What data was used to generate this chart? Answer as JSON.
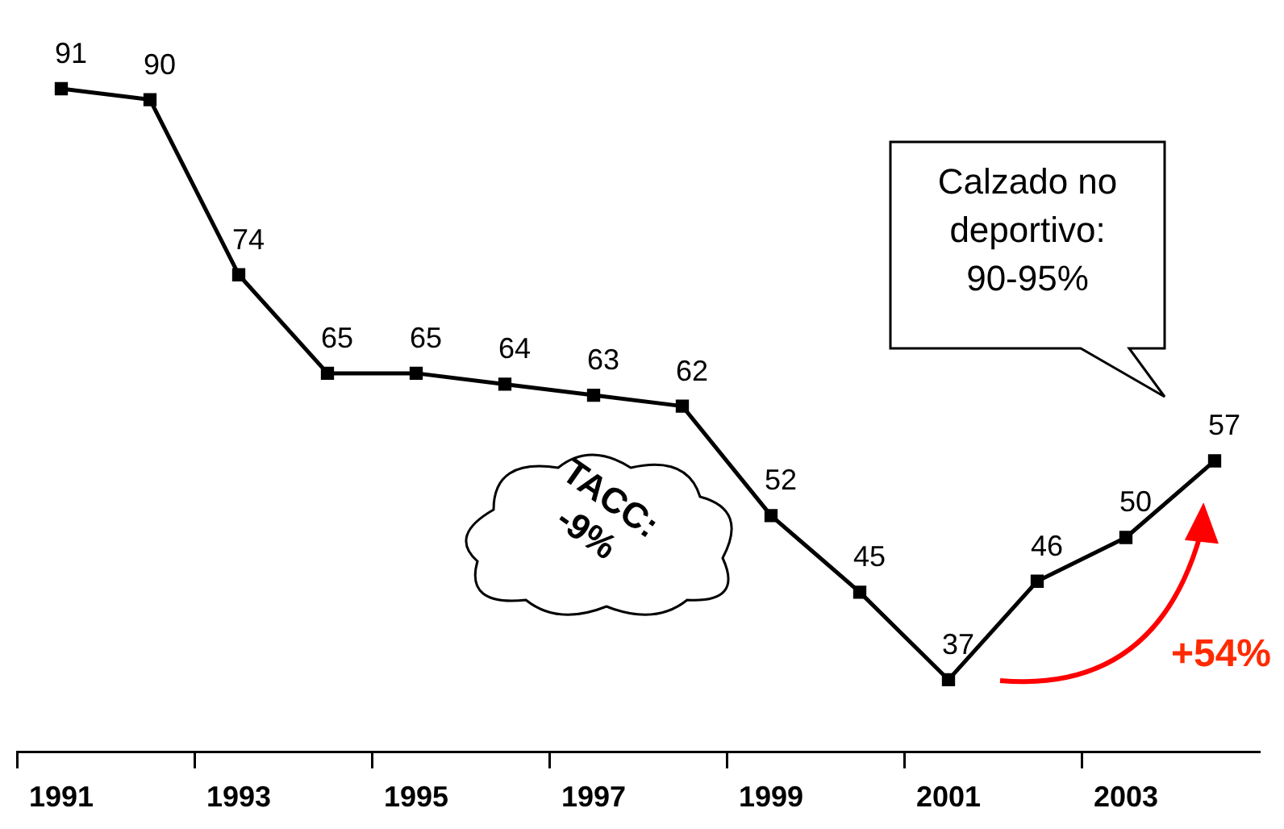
{
  "chart_data": {
    "type": "line",
    "categories": [
      "1991",
      null,
      "1993",
      null,
      "1995",
      null,
      "1997",
      null,
      "1999",
      null,
      "2001",
      null,
      "2003",
      null
    ],
    "series": [
      {
        "color": "#000000",
        "values": [
          91,
          90,
          74,
          65,
          65,
          64,
          63,
          62,
          52,
          45,
          37,
          46,
          50,
          57
        ]
      }
    ],
    "data_labels": true,
    "marker": "square",
    "line_style": "solid",
    "grid": false,
    "legend": false,
    "tick_labels": "x",
    "annotations": [
      "Calzado no deportivo:\n90-95%",
      "TACC:\n-9%",
      "+54%"
    ]
  }
}
